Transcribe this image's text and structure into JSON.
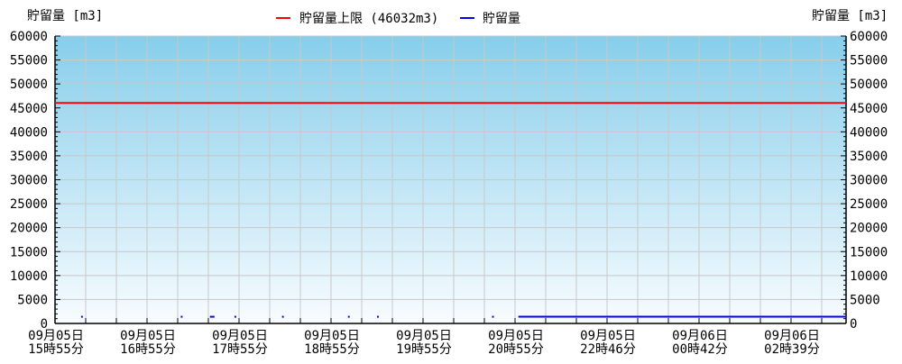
{
  "chart_data": {
    "type": "line",
    "ylabel_left": "貯留量 [m3]",
    "ylabel_right": "貯留量 [m3]",
    "ylim": [
      0,
      60000
    ],
    "yticks": [
      0,
      5000,
      10000,
      15000,
      20000,
      25000,
      30000,
      35000,
      40000,
      45000,
      50000,
      55000,
      60000
    ],
    "grid": true,
    "legend_placement": "top-center",
    "background_gradient": [
      "#87ceeb",
      "#f8fcff"
    ],
    "xticks": [
      {
        "date": "09月05日",
        "time": "15時55分",
        "t": "09-05 15:55"
      },
      {
        "date": "09月05日",
        "time": "16時55分",
        "t": "09-05 16:55"
      },
      {
        "date": "09月05日",
        "time": "17時55分",
        "t": "09-05 17:55"
      },
      {
        "date": "09月05日",
        "time": "18時55分",
        "t": "09-05 18:55"
      },
      {
        "date": "09月05日",
        "time": "19時55分",
        "t": "09-05 19:55"
      },
      {
        "date": "09月05日",
        "time": "20時55分",
        "t": "09-05 20:55"
      },
      {
        "date": "09月05日",
        "time": "22時46分",
        "t": "09-05 22:46"
      },
      {
        "date": "09月06日",
        "time": "00時42分",
        "t": "09-06 00:42"
      },
      {
        "date": "09月06日",
        "time": "02時39分",
        "t": "09-06 02:39"
      }
    ],
    "series": [
      {
        "name": "貯留量上限 (46032m3)",
        "color": "#ff0000",
        "value": 46032
      },
      {
        "name": "貯留量",
        "color": "#0000ff",
        "segments": [
          {
            "start": "09-05 16:12",
            "end": "09-05 16:13",
            "value": 1400
          },
          {
            "start": "09-05 17:17",
            "end": "09-05 17:18",
            "value": 1400
          },
          {
            "start": "09-05 17:36",
            "end": "09-05 17:39",
            "value": 1400
          },
          {
            "start": "09-05 17:52",
            "end": "09-05 17:53",
            "value": 1400
          },
          {
            "start": "09-05 18:23",
            "end": "09-05 18:24",
            "value": 1400
          },
          {
            "start": "09-05 19:06",
            "end": "09-05 19:07",
            "value": 1400
          },
          {
            "start": "09-05 19:25",
            "end": "09-05 19:26",
            "value": 1400
          },
          {
            "start": "09-05 20:40",
            "end": "09-05 20:41",
            "value": 1400
          },
          {
            "start": "09-05 20:59",
            "end": "09-06 03:48",
            "value": 1400
          }
        ]
      }
    ]
  }
}
